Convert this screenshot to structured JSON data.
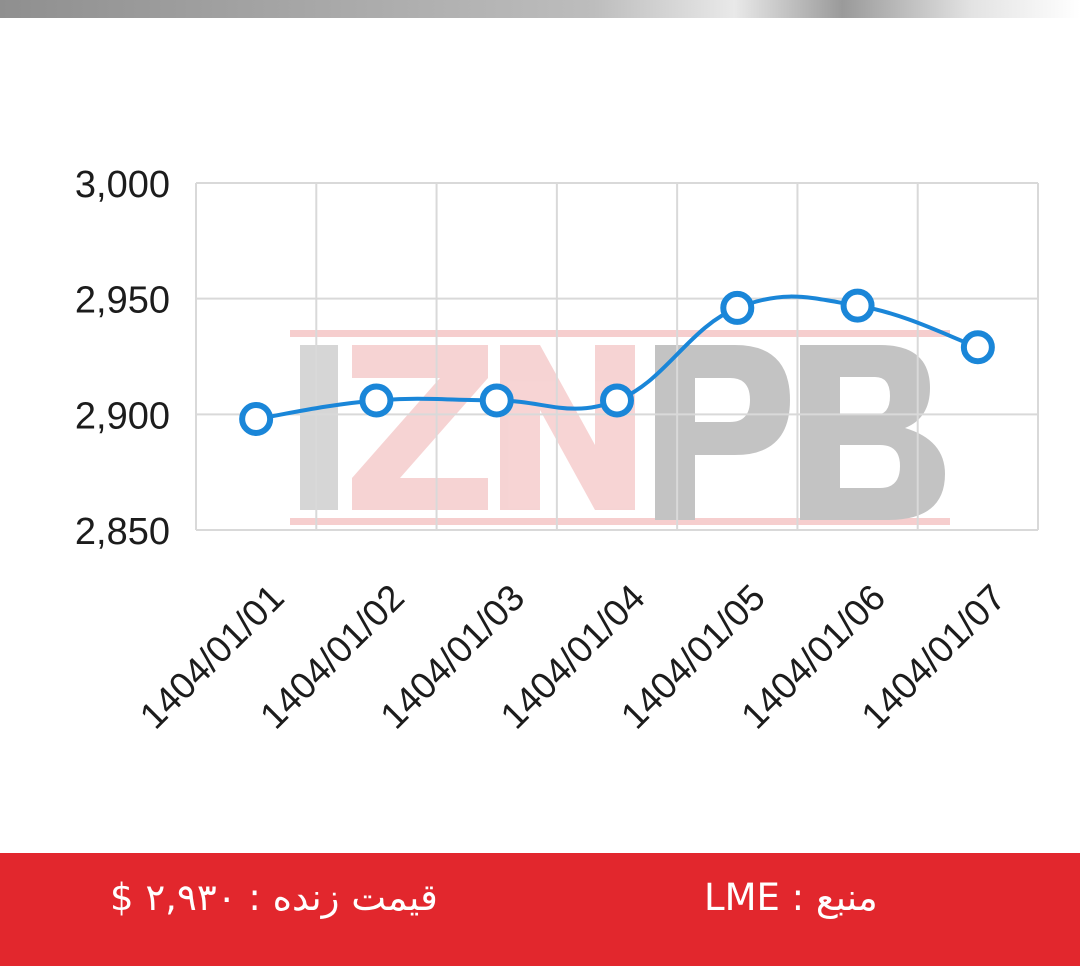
{
  "chart_data": {
    "type": "line",
    "title": "",
    "xlabel": "",
    "ylabel": "",
    "categories": [
      "1404/01/01",
      "1404/01/02",
      "1404/01/03",
      "1404/01/04",
      "1404/01/05",
      "1404/01/06",
      "1404/01/07"
    ],
    "series": [
      {
        "values": [
          2898,
          2906,
          2906,
          2906,
          2946,
          2947,
          2929
        ]
      }
    ],
    "ylim": [
      2850,
      3000
    ],
    "yticks": [
      3000,
      2950,
      2900,
      2850
    ],
    "ytick_labels": [
      "3,000",
      "2,950",
      "2,900",
      "2,850"
    ],
    "grid": true,
    "smooth": true,
    "line_color": "#1a86d8",
    "watermark": "IZNPB"
  },
  "footer": {
    "live_price": "قیمت زنده : ۲,۹۳۰ $",
    "source": "منبع : LME",
    "background_color": "#e2272d"
  }
}
